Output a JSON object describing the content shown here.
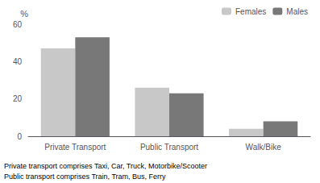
{
  "chart_data": {
    "type": "bar",
    "categories": [
      "Private Transport",
      "Public Transport",
      "Walk/Bike"
    ],
    "series": [
      {
        "name": "Females",
        "color": "#c8c8c8",
        "values": [
          47,
          26,
          4
        ]
      },
      {
        "name": "Males",
        "color": "#787878",
        "values": [
          53,
          23,
          8
        ]
      }
    ],
    "ylabel": "%",
    "ylim": [
      0,
      60
    ],
    "yticks": [
      0,
      20,
      40,
      60
    ],
    "grid": false,
    "legend": "upper right",
    "annotations": [
      "Private transport comprises Taxi, Car, Truck, Motorbike/Scooter",
      "Public transport comprises Train, Tram, Bus, Ferry"
    ]
  }
}
